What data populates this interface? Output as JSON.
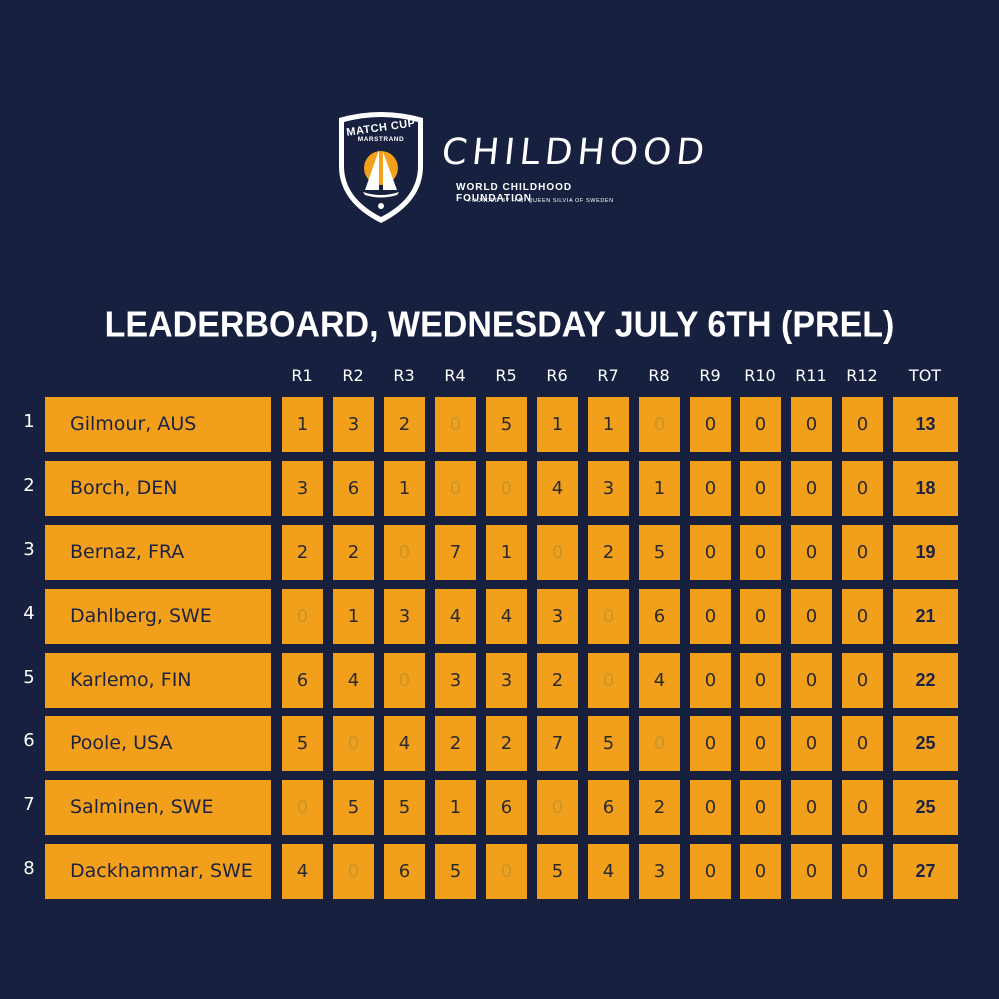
{
  "logos": {
    "match_cup_line1": "MATCH CUP",
    "match_cup_line2": "MARSTRAND",
    "childhood_title": "CHILDHOOD",
    "childhood_subtitle": "WORLD CHILDHOOD FOUNDATION",
    "childhood_tagline": "FOUNDED BY H.M. QUEEN SILVIA OF SWEDEN"
  },
  "title": "LEADERBOARD, WEDNESDAY JULY 6TH (PREL)",
  "colors": {
    "background": "#17213f",
    "cell": "#f29f1c",
    "faded_text": "#c8962a"
  },
  "columns": [
    "R1",
    "R2",
    "R3",
    "R4",
    "R5",
    "R6",
    "R7",
    "R8",
    "R9",
    "R10",
    "R11",
    "R12"
  ],
  "total_label": "TOT",
  "rows": [
    {
      "rank": "1",
      "name": "Gilmour, AUS",
      "scores": [
        "1",
        "3",
        "2",
        "0",
        "5",
        "1",
        "1",
        "0",
        "0",
        "0",
        "0",
        "0"
      ],
      "faded": [
        3,
        7
      ],
      "total": "13"
    },
    {
      "rank": "2",
      "name": "Borch, DEN",
      "scores": [
        "3",
        "6",
        "1",
        "0",
        "0",
        "4",
        "3",
        "1",
        "0",
        "0",
        "0",
        "0"
      ],
      "faded": [
        3,
        4
      ],
      "total": "18"
    },
    {
      "rank": "3",
      "name": "Bernaz, FRA",
      "scores": [
        "2",
        "2",
        "0",
        "7",
        "1",
        "0",
        "2",
        "5",
        "0",
        "0",
        "0",
        "0"
      ],
      "faded": [
        2,
        5
      ],
      "total": "19"
    },
    {
      "rank": "4",
      "name": "Dahlberg, SWE",
      "scores": [
        "0",
        "1",
        "3",
        "4",
        "4",
        "3",
        "0",
        "6",
        "0",
        "0",
        "0",
        "0"
      ],
      "faded": [
        0,
        6
      ],
      "total": "21"
    },
    {
      "rank": "5",
      "name": "Karlemo, FIN",
      "scores": [
        "6",
        "4",
        "0",
        "3",
        "3",
        "2",
        "0",
        "4",
        "0",
        "0",
        "0",
        "0"
      ],
      "faded": [
        2,
        6
      ],
      "total": "22"
    },
    {
      "rank": "6",
      "name": "Poole, USA",
      "scores": [
        "5",
        "0",
        "4",
        "2",
        "2",
        "7",
        "5",
        "0",
        "0",
        "0",
        "0",
        "0"
      ],
      "faded": [
        1,
        7
      ],
      "total": "25"
    },
    {
      "rank": "7",
      "name": "Salminen, SWE",
      "scores": [
        "0",
        "5",
        "5",
        "1",
        "6",
        "0",
        "6",
        "2",
        "0",
        "0",
        "0",
        "0"
      ],
      "faded": [
        0,
        5
      ],
      "total": "25"
    },
    {
      "rank": "8",
      "name": "Dackhammar, SWE",
      "scores": [
        "4",
        "0",
        "6",
        "5",
        "0",
        "5",
        "4",
        "3",
        "0",
        "0",
        "0",
        "0"
      ],
      "faded": [
        1,
        4
      ],
      "total": "27"
    }
  ]
}
